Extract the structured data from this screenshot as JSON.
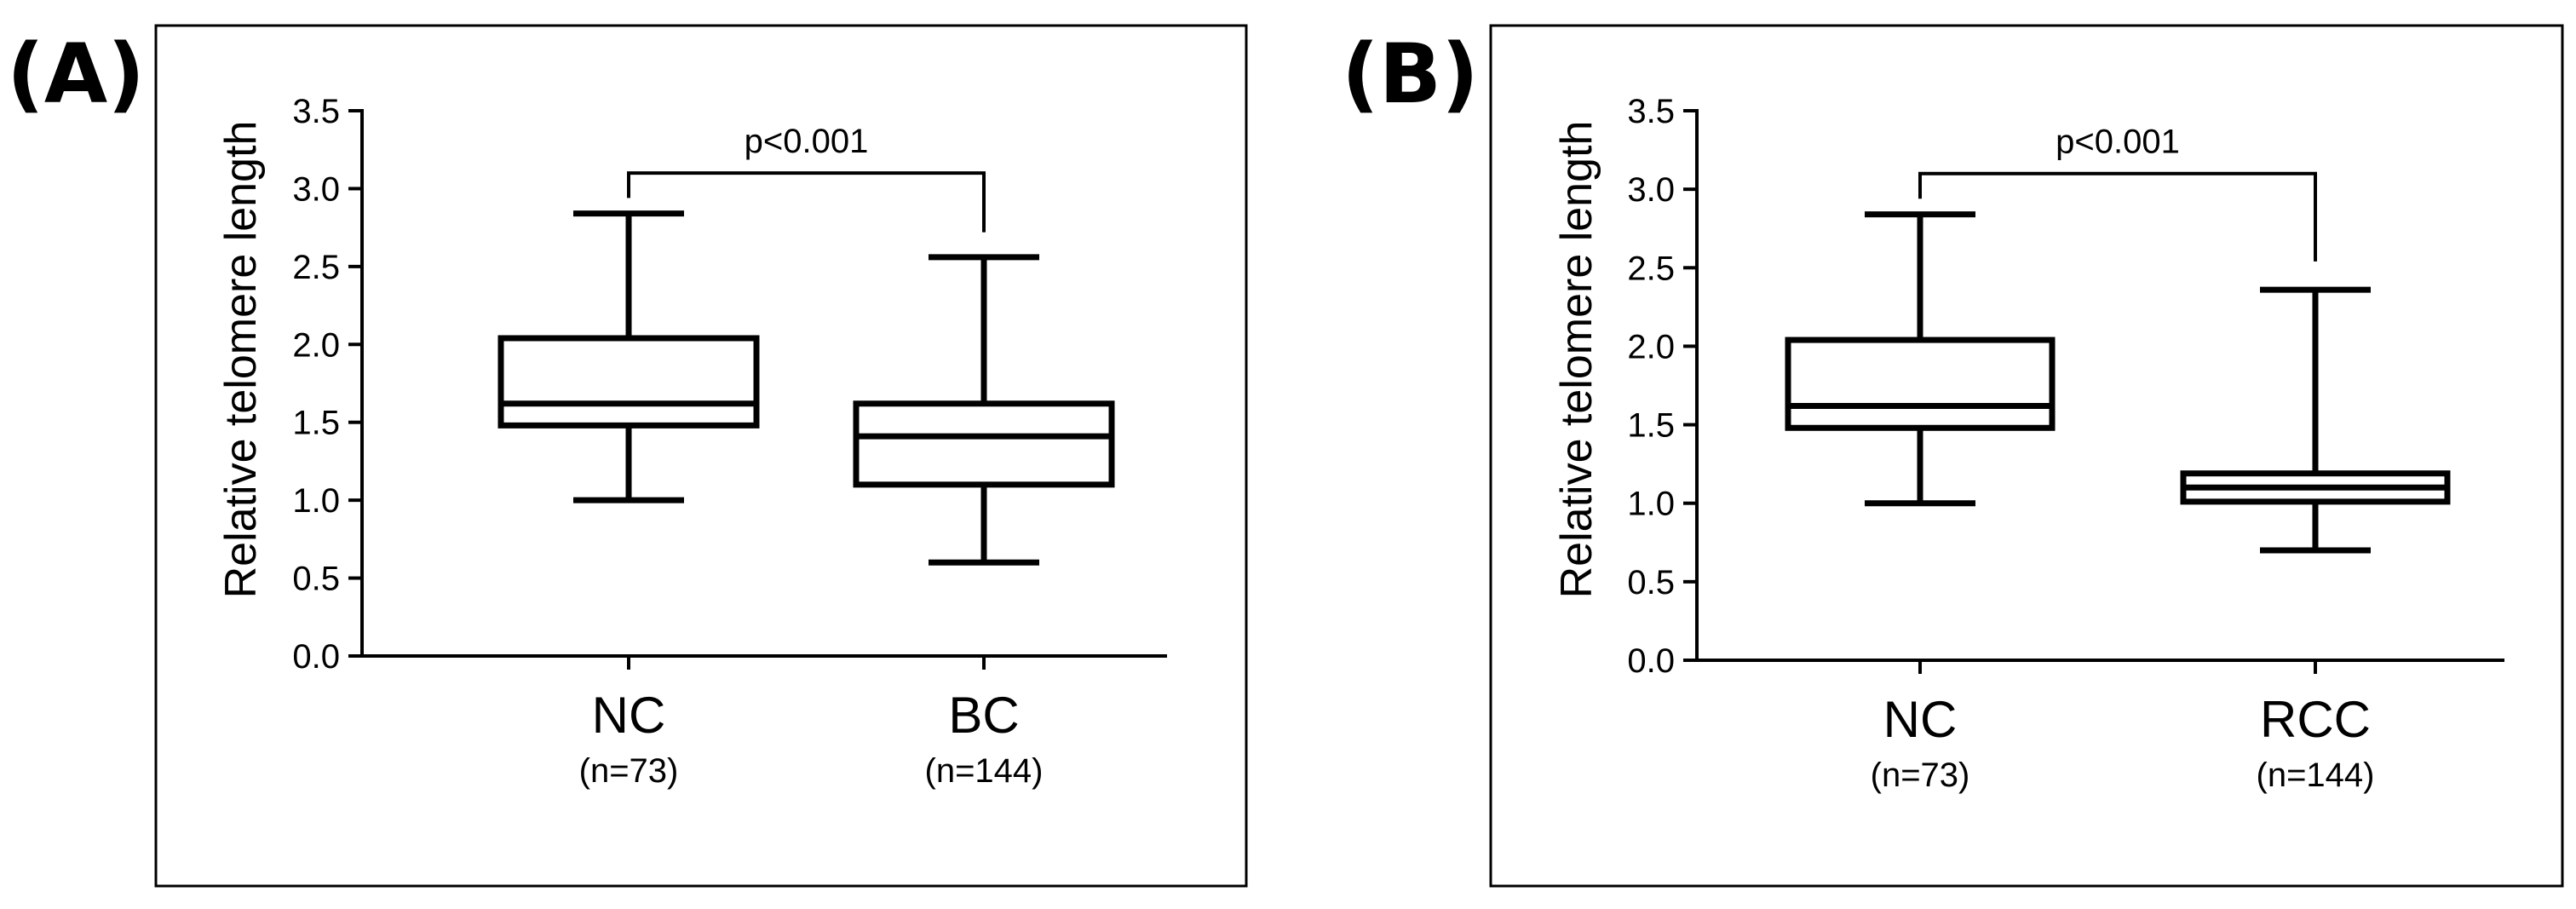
{
  "chart_data": [
    {
      "type": "box",
      "panel_label": "(A)",
      "ylabel": "Relative telomere length",
      "ylim": [
        0,
        3.5
      ],
      "yticks": [
        "0.0",
        "0.5",
        "1.0",
        "1.5",
        "2.0",
        "2.5",
        "3.0",
        "3.5"
      ],
      "categories": [
        "NC",
        "BC"
      ],
      "category_counts": [
        "(n=73)",
        "(n=144)"
      ],
      "boxes": [
        {
          "min": 1.0,
          "q1": 1.48,
          "median": 1.62,
          "q3": 2.04,
          "max": 2.84
        },
        {
          "min": 0.6,
          "q1": 1.1,
          "median": 1.41,
          "q3": 1.62,
          "max": 2.56
        }
      ],
      "significance": {
        "label": "p<0.001",
        "y": 3.1,
        "left_drop": 2.94,
        "right_drop": 2.72
      }
    },
    {
      "type": "box",
      "panel_label": "(B)",
      "ylabel": "Relative telomere length",
      "ylim": [
        0,
        3.5
      ],
      "yticks": [
        "0.0",
        "0.5",
        "1.0",
        "1.5",
        "2.0",
        "2.5",
        "3.0",
        "3.5"
      ],
      "categories": [
        "NC",
        "RCC"
      ],
      "category_counts": [
        "(n=73)",
        "(n=144)"
      ],
      "boxes": [
        {
          "min": 1.0,
          "q1": 1.48,
          "median": 1.62,
          "q3": 2.04,
          "max": 2.84
        },
        {
          "min": 0.7,
          "q1": 1.01,
          "median": 1.1,
          "q3": 1.19,
          "max": 2.36
        }
      ],
      "significance": {
        "label": "p<0.001",
        "y": 3.1,
        "left_drop": 2.94,
        "right_drop": 2.54
      }
    }
  ]
}
